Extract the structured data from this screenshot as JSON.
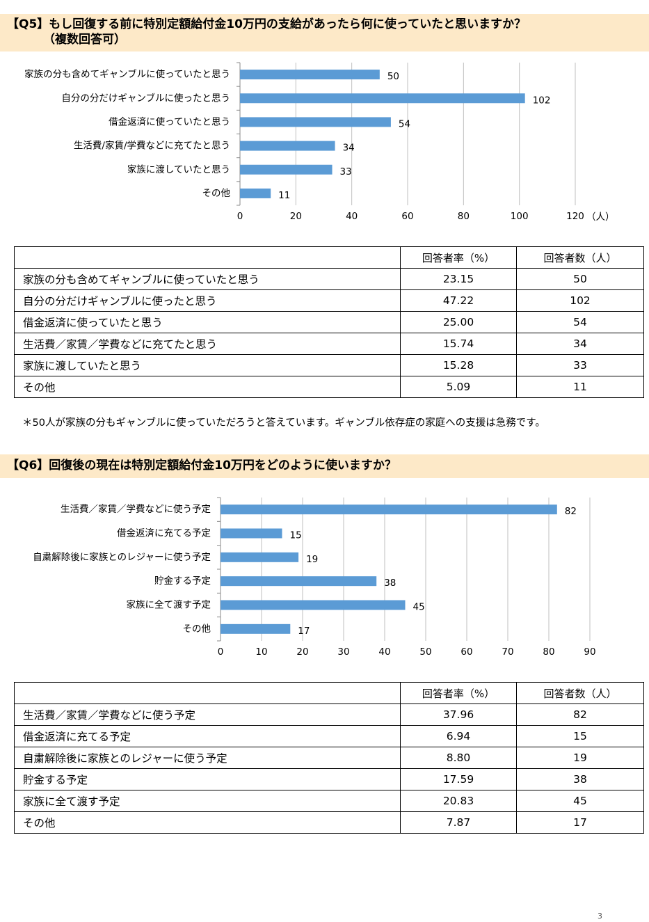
{
  "q5": {
    "title_line1": "【Q5】もし回復する前に特別定額給付金10万円の支給があったら何に使っていたと思いますか？",
    "title_line2": "（複数回答可）",
    "table": {
      "col_rate": "回答者率（%）",
      "col_count": "回答者数（人）",
      "rows": [
        {
          "label": "家族の分も含めてギャンブルに使っていたと思う",
          "rate": "23.15",
          "count": "50"
        },
        {
          "label": "自分の分だけギャンブルに使ったと思う",
          "rate": "47.22",
          "count": "102"
        },
        {
          "label": "借金返済に使っていたと思う",
          "rate": "25.00",
          "count": "54"
        },
        {
          "label": "生活費／家賃／学費などに充てたと思う",
          "rate": "15.74",
          "count": "34"
        },
        {
          "label": "家族に渡していたと思う",
          "rate": "15.28",
          "count": "33"
        },
        {
          "label": "その他",
          "rate": "5.09",
          "count": "11"
        }
      ]
    },
    "note": "＊50人が家族の分もギャンブルに使っていただろうと答えています。ギャンブル依存症の家庭への支援は急務です。"
  },
  "q6": {
    "title_line1": "【Q6】回復後の現在は特別定額給付金10万円をどのように使いますか？",
    "table": {
      "col_rate": "回答者率（%）",
      "col_count": "回答者数（人）",
      "rows": [
        {
          "label": "生活費／家賃／学費などに使う予定",
          "rate": "37.96",
          "count": "82"
        },
        {
          "label": "借金返済に充てる予定",
          "rate": "6.94",
          "count": "15"
        },
        {
          "label": "自粛解除後に家族とのレジャーに使う予定",
          "rate": "8.80",
          "count": "19"
        },
        {
          "label": "貯金する予定",
          "rate": "17.59",
          "count": "38"
        },
        {
          "label": "家族に全て渡す予定",
          "rate": "20.83",
          "count": "45"
        },
        {
          "label": "その他",
          "rate": "7.87",
          "count": "17"
        }
      ]
    }
  },
  "page_number": "3",
  "bar_color": "#5b9bd5",
  "chart_data": [
    {
      "type": "bar",
      "orientation": "horizontal",
      "categories": [
        "家族の分も含めてギャンブルに使っていたと思う",
        "自分の分だけギャンブルに使ったと思う",
        "借金返済に使っていたと思う",
        "生活費/家賃/学費などに充てたと思う",
        "家族に渡していたと思う",
        "その他"
      ],
      "values": [
        50,
        102,
        54,
        34,
        33,
        11
      ],
      "xlim": [
        0,
        120
      ],
      "xticks": [
        0,
        20,
        40,
        60,
        80,
        100,
        120
      ],
      "xunit": "（人）",
      "grid": true
    },
    {
      "type": "bar",
      "orientation": "horizontal",
      "categories": [
        "生活費／家賃／学費などに使う予定",
        "借金返済に充てる予定",
        "自粛解除後に家族とのレジャーに使う予定",
        "貯金する予定",
        "家族に全て渡す予定",
        "その他"
      ],
      "values": [
        82,
        15,
        19,
        38,
        45,
        17
      ],
      "xlim": [
        0,
        90
      ],
      "xticks": [
        0,
        10,
        20,
        30,
        40,
        50,
        60,
        70,
        80,
        90
      ],
      "grid": true
    }
  ]
}
